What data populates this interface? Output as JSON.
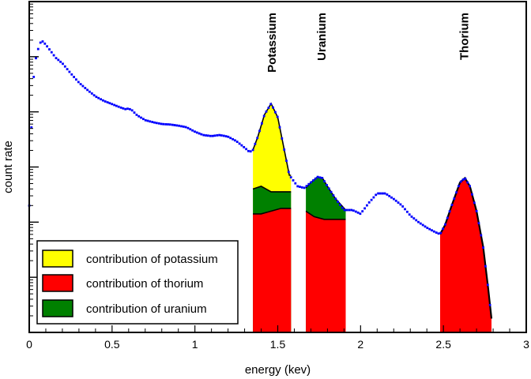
{
  "chart_data": {
    "type": "area",
    "xlabel": "energy (kev)",
    "ylabel": "count rate",
    "xlim": [
      0,
      3
    ],
    "x_ticks": [
      "0",
      "0.5",
      "1",
      "1.5",
      "2",
      "2.5",
      "3"
    ],
    "y_scale": "log",
    "y_decades": 6,
    "y_tick_labels": "none",
    "grid": false,
    "legend_position": "bottom-left",
    "peak_labels": [
      {
        "text": "Potassium",
        "x": 1.46
      },
      {
        "text": "Uranium",
        "x": 1.76
      },
      {
        "text": "Thorium",
        "x": 2.62
      }
    ],
    "legend": [
      {
        "label": "contribution of potassium",
        "color": "#ffff00"
      },
      {
        "label": "contribution of thorium",
        "color": "#ff0000"
      },
      {
        "label": "contribution of uranium",
        "color": "#008000"
      }
    ],
    "spectrum": {
      "color": "#0000ff",
      "points": [
        [
          0.0,
          2.3
        ],
        [
          0.02,
          4.4
        ],
        [
          0.035,
          4.9
        ],
        [
          0.05,
          5.1
        ],
        [
          0.065,
          5.25
        ],
        [
          0.08,
          5.28
        ],
        [
          0.1,
          5.22
        ],
        [
          0.13,
          5.1
        ],
        [
          0.16,
          4.98
        ],
        [
          0.2,
          4.88
        ],
        [
          0.25,
          4.7
        ],
        [
          0.3,
          4.53
        ],
        [
          0.35,
          4.4
        ],
        [
          0.4,
          4.28
        ],
        [
          0.45,
          4.2
        ],
        [
          0.5,
          4.14
        ],
        [
          0.55,
          4.08
        ],
        [
          0.58,
          4.05
        ],
        [
          0.6,
          4.06
        ],
        [
          0.62,
          4.03
        ],
        [
          0.65,
          3.94
        ],
        [
          0.7,
          3.85
        ],
        [
          0.75,
          3.81
        ],
        [
          0.8,
          3.78
        ],
        [
          0.85,
          3.77
        ],
        [
          0.9,
          3.75
        ],
        [
          0.95,
          3.72
        ],
        [
          1.0,
          3.64
        ],
        [
          1.05,
          3.58
        ],
        [
          1.1,
          3.56
        ],
        [
          1.15,
          3.58
        ],
        [
          1.2,
          3.55
        ],
        [
          1.25,
          3.47
        ],
        [
          1.3,
          3.35
        ],
        [
          1.33,
          3.27
        ],
        [
          1.35,
          3.31
        ],
        [
          1.38,
          3.55
        ],
        [
          1.42,
          3.95
        ],
        [
          1.46,
          4.15
        ],
        [
          1.5,
          3.9
        ],
        [
          1.53,
          3.45
        ],
        [
          1.57,
          2.85
        ],
        [
          1.62,
          2.65
        ],
        [
          1.66,
          2.62
        ],
        [
          1.7,
          2.72
        ],
        [
          1.74,
          2.82
        ],
        [
          1.77,
          2.8
        ],
        [
          1.8,
          2.65
        ],
        [
          1.85,
          2.42
        ],
        [
          1.9,
          2.22
        ],
        [
          1.95,
          2.22
        ],
        [
          2.0,
          2.15
        ],
        [
          2.05,
          2.35
        ],
        [
          2.1,
          2.52
        ],
        [
          2.15,
          2.52
        ],
        [
          2.2,
          2.42
        ],
        [
          2.25,
          2.3
        ],
        [
          2.3,
          2.12
        ],
        [
          2.35,
          2.0
        ],
        [
          2.4,
          1.9
        ],
        [
          2.45,
          1.82
        ],
        [
          2.48,
          1.78
        ],
        [
          2.51,
          1.95
        ],
        [
          2.55,
          2.3
        ],
        [
          2.6,
          2.72
        ],
        [
          2.63,
          2.8
        ],
        [
          2.66,
          2.65
        ],
        [
          2.7,
          2.2
        ],
        [
          2.74,
          1.55
        ],
        [
          2.77,
          0.8
        ],
        [
          2.79,
          0.25
        ]
      ]
    },
    "contributions": {
      "thorium": [
        {
          "x_range": [
            1.35,
            1.58
          ],
          "upper": [
            [
              1.35,
              2.15
            ],
            [
              1.4,
              2.15
            ],
            [
              1.46,
              2.2
            ],
            [
              1.52,
              2.25
            ],
            [
              1.58,
              2.25
            ]
          ]
        },
        {
          "x_range": [
            1.67,
            1.91
          ],
          "upper": [
            [
              1.67,
              2.2
            ],
            [
              1.72,
              2.1
            ],
            [
              1.78,
              2.05
            ],
            [
              1.84,
              2.05
            ],
            [
              1.91,
              2.05
            ]
          ]
        },
        {
          "x_range": [
            2.48,
            2.79
          ],
          "upper": [
            [
              2.48,
              1.78
            ],
            [
              2.51,
              1.95
            ],
            [
              2.55,
              2.3
            ],
            [
              2.6,
              2.72
            ],
            [
              2.63,
              2.8
            ],
            [
              2.66,
              2.65
            ],
            [
              2.7,
              2.2
            ],
            [
              2.74,
              1.55
            ],
            [
              2.77,
              0.8
            ],
            [
              2.79,
              0.25
            ]
          ]
        }
      ],
      "uranium": [
        {
          "x_range": [
            1.35,
            1.58
          ],
          "upper": [
            [
              1.35,
              2.6
            ],
            [
              1.4,
              2.65
            ],
            [
              1.46,
              2.55
            ],
            [
              1.52,
              2.55
            ],
            [
              1.58,
              2.55
            ]
          ]
        },
        {
          "x_range": [
            1.67,
            1.91
          ],
          "upper": [
            [
              1.67,
              2.62
            ],
            [
              1.7,
              2.72
            ],
            [
              1.74,
              2.82
            ],
            [
              1.77,
              2.8
            ],
            [
              1.8,
              2.65
            ],
            [
              1.85,
              2.42
            ],
            [
              1.91,
              2.22
            ]
          ]
        }
      ],
      "potassium": [
        {
          "x_range": [
            1.35,
            1.58
          ],
          "upper": [
            [
              1.35,
              3.31
            ],
            [
              1.38,
              3.55
            ],
            [
              1.42,
              3.95
            ],
            [
              1.46,
              4.15
            ],
            [
              1.5,
              3.9
            ],
            [
              1.53,
              3.45
            ],
            [
              1.57,
              2.85
            ],
            [
              1.58,
              2.85
            ]
          ]
        }
      ]
    }
  }
}
